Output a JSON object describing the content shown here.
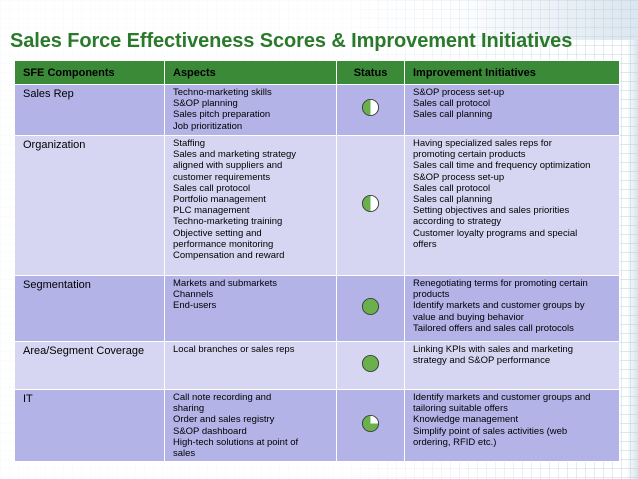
{
  "title": "Sales Force Effectiveness Scores & Improvement Initiatives",
  "table": {
    "headers": {
      "component": "SFE Components",
      "aspects": "Aspects",
      "status": "Status",
      "initiatives": "Improvement Initiatives"
    },
    "rows": [
      {
        "component": "Sales Rep",
        "aspects": [
          "Techno-marketing skills",
          "S&OP planning",
          "Sales pitch preparation",
          "Job prioritization"
        ],
        "status": {
          "icon": "half-filled-circle-icon",
          "fill_fraction": 0.5
        },
        "initiatives": [
          "S&OP process set-up",
          "Sales call protocol",
          "Sales call planning"
        ]
      },
      {
        "component": "Organization",
        "aspects": [
          "Staffing",
          "Sales and marketing strategy",
          "aligned with suppliers and",
          "customer  requirements",
          "Sales call protocol",
          "Portfolio management",
          "PLC management",
          "Techno-marketing training",
          "Objective setting and",
          "performance monitoring",
          "Compensation and reward"
        ],
        "status": {
          "icon": "half-filled-circle-icon",
          "fill_fraction": 0.5
        },
        "initiatives": [
          "Having specialized sales reps for",
          "promoting certain products",
          "Sales call time and frequency optimization",
          "S&OP process set-up",
          "Sales call protocol",
          "Sales call planning",
          "Setting objectives and sales priorities",
          "according to strategy",
          "Customer loyalty programs and special",
          "offers"
        ]
      },
      {
        "component": "Segmentation",
        "aspects": [
          "Markets and submarkets",
          "Channels",
          "End-users"
        ],
        "status": {
          "icon": "full-circle-icon",
          "fill_fraction": 1.0
        },
        "initiatives": [
          "Renegotiating terms for promoting certain",
          "products",
          "Identify markets and customer groups by",
          "value and buying behavior",
          "Tailored offers and sales call protocols"
        ]
      },
      {
        "component": "Area/Segment Coverage",
        "aspects": [
          "Local branches or sales reps"
        ],
        "status": {
          "icon": "full-circle-icon",
          "fill_fraction": 1.0
        },
        "initiatives": [
          "Linking KPIs with sales and marketing",
          "strategy and S&OP performance"
        ]
      },
      {
        "component": "IT",
        "aspects": [
          "Call note recording and",
          "sharing",
          "Order and sales registry",
          "S&OP dashboard",
          "High-tech solutions at point of",
          "sales"
        ],
        "status": {
          "icon": "three-quarter-circle-icon",
          "fill_fraction": 0.75
        },
        "initiatives": [
          "Identify markets and customer groups and",
          "tailoring suitable offers",
          "Knowledge management",
          "Simplify point of sales activities (web",
          "ordering, RFID etc.)"
        ]
      }
    ]
  },
  "colors": {
    "title": "#2b7a2b",
    "header_bg": "#3a8a38",
    "row_odd": "#b3b3e8",
    "row_even": "#d6d6f2",
    "status_fill": "#6ab04c"
  }
}
